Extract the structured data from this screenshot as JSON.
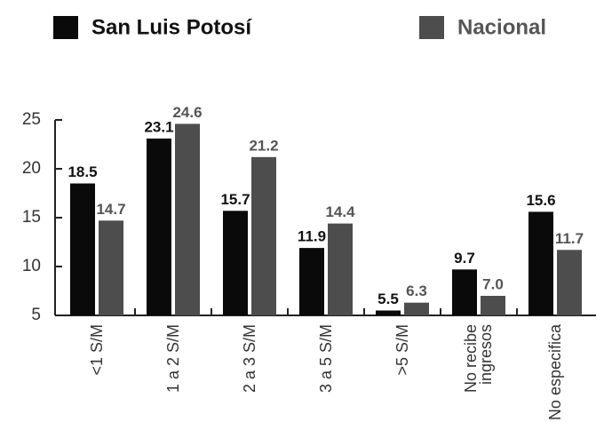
{
  "chart_data": {
    "type": "bar",
    "categories": [
      "<1 S/M",
      "1 a 2 S/M",
      "2 a 3 S/M",
      "3 a 5 S/M",
      ">5 S/M",
      "No recibe ingresos",
      "No especifica"
    ],
    "series": [
      {
        "name": "San Luis Potosí",
        "color": "#0a0a0a",
        "values": [
          18.5,
          23.1,
          15.7,
          11.9,
          5.5,
          9.7,
          15.6
        ],
        "value_labels": [
          "18.5",
          "23.1",
          "15.7",
          "11.9",
          "5.5",
          "9.7",
          "15.6"
        ]
      },
      {
        "name": "Nacional",
        "color": "#4d4d4d",
        "values": [
          14.7,
          24.6,
          21.2,
          14.4,
          6.3,
          7.0,
          11.7
        ],
        "value_labels": [
          "14.7",
          "24.6",
          "21.2",
          "14.4",
          "6.3",
          "7.0",
          "11.7"
        ]
      }
    ],
    "ylim": [
      5,
      25
    ],
    "yticks": [
      5,
      10,
      15,
      20,
      25
    ],
    "grid": false,
    "legend": "top"
  }
}
